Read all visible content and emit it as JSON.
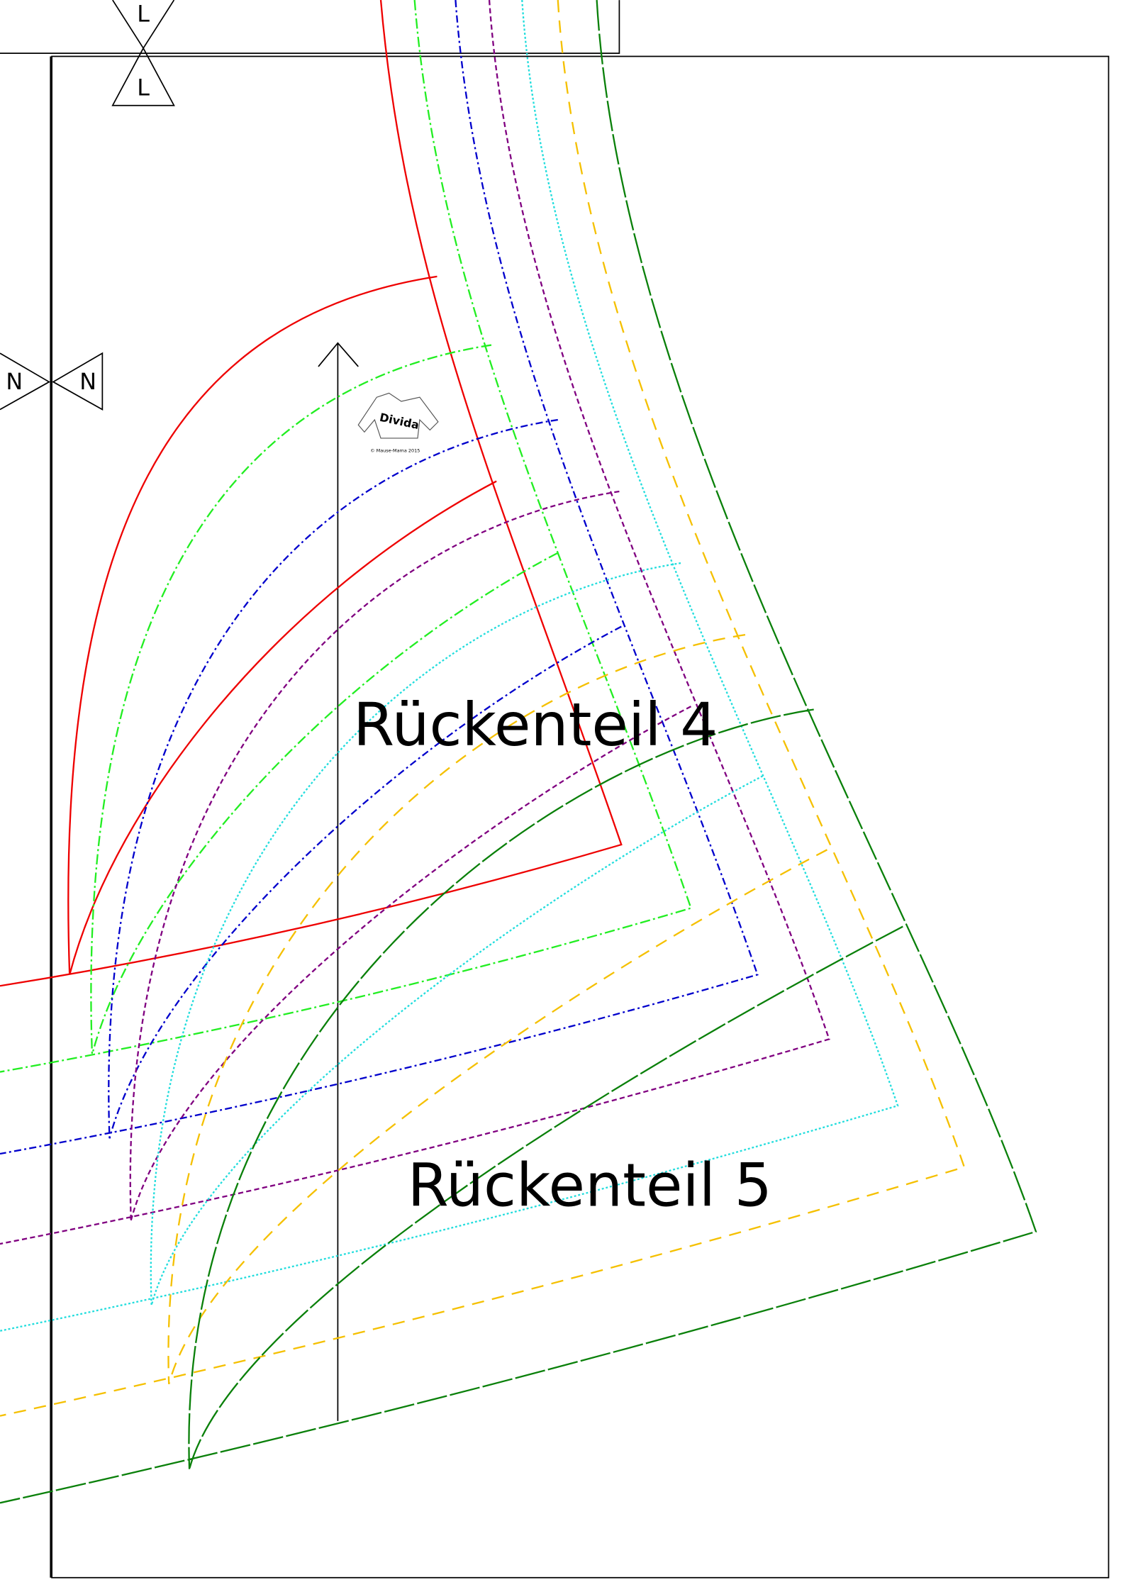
{
  "markers": {
    "top": [
      "L",
      "L"
    ],
    "side": [
      "N",
      "N"
    ]
  },
  "pieces": [
    "Rückenteil 4",
    "Rückenteil 5"
  ],
  "logo": {
    "name": "Divida",
    "copyright": "© Mause-Mama 2015"
  }
}
